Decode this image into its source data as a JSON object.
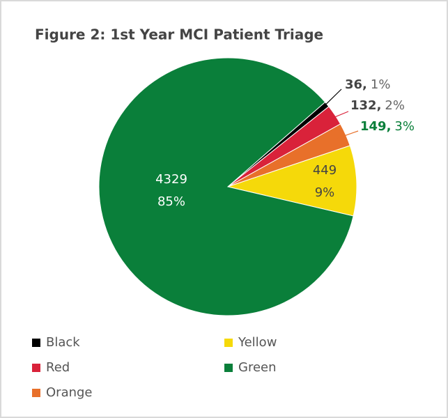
{
  "chart_data": {
    "type": "pie",
    "title": "Figure 2: 1st Year MCI Patient Triage",
    "categories": [
      "Black",
      "Red",
      "Orange",
      "Yellow",
      "Green"
    ],
    "values": [
      36,
      132,
      149,
      449,
      4329
    ],
    "value_labels": [
      "36,",
      "132,",
      "149,",
      "449",
      "4329"
    ],
    "percents": [
      1,
      2,
      3,
      9,
      85
    ],
    "percent_labels": [
      "1%",
      "2%",
      "3%",
      "9%",
      "85%"
    ],
    "colors": [
      "#000000",
      "#d9223a",
      "#e8702a",
      "#f5d90a",
      "#0a7f3a"
    ],
    "legend": "bottom"
  }
}
